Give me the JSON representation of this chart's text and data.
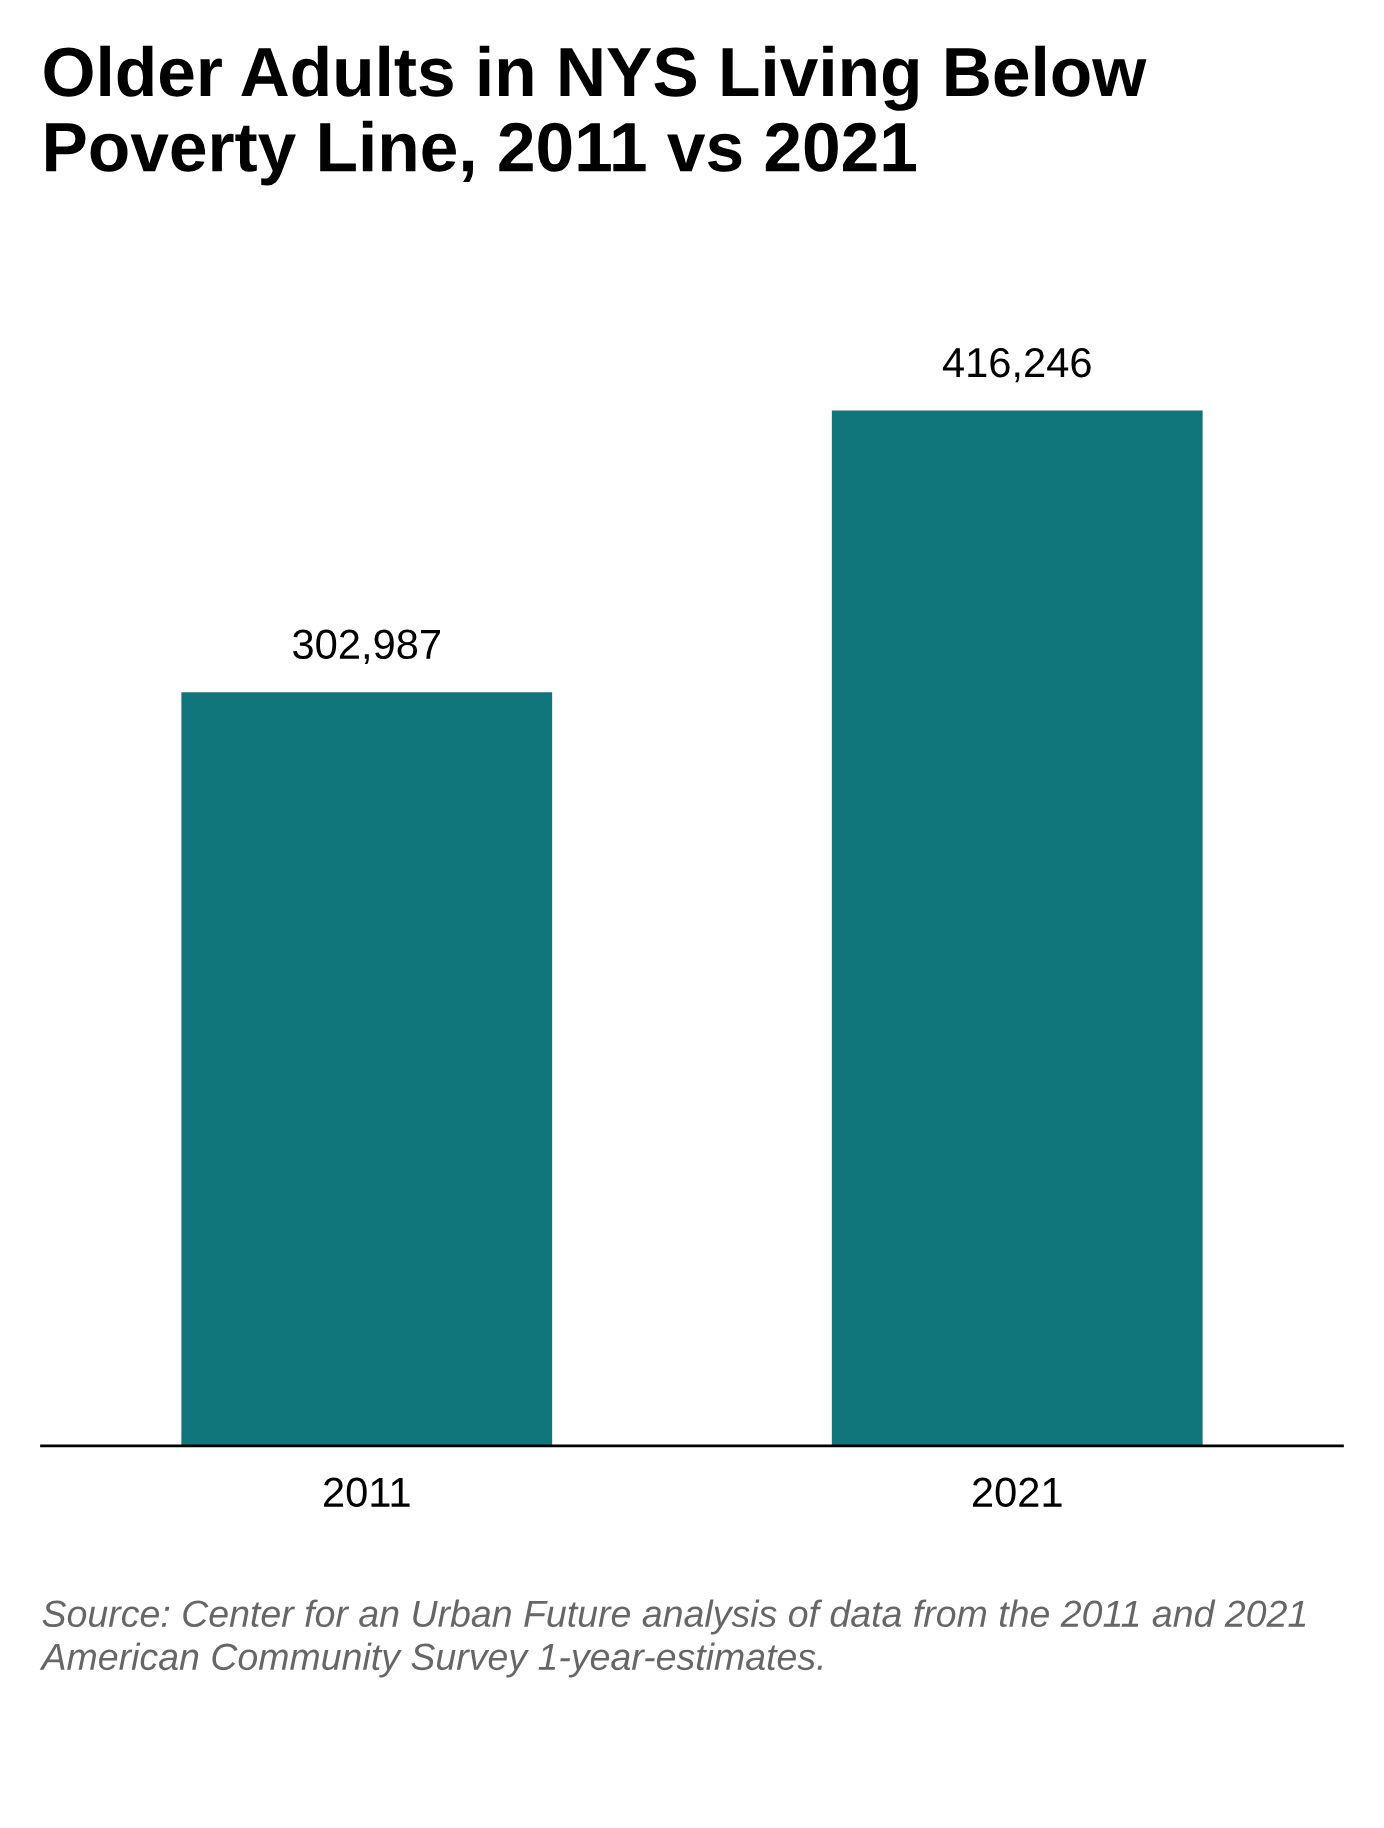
{
  "chart_data": {
    "type": "bar",
    "title": "Older Adults in NYS Living Below Poverty Line, 2011 vs 2021",
    "categories": [
      "2011",
      "2021"
    ],
    "values": [
      302987,
      416246
    ],
    "color": "#10767b",
    "data_labels": true,
    "value_labels": [
      "302,987",
      "416,246"
    ],
    "grid": false,
    "legend": false,
    "annotations": [
      "Source: Center for an Urban Future analysis of data from the 2011 and 2021 American Community Survey 1-year-estimates."
    ]
  }
}
